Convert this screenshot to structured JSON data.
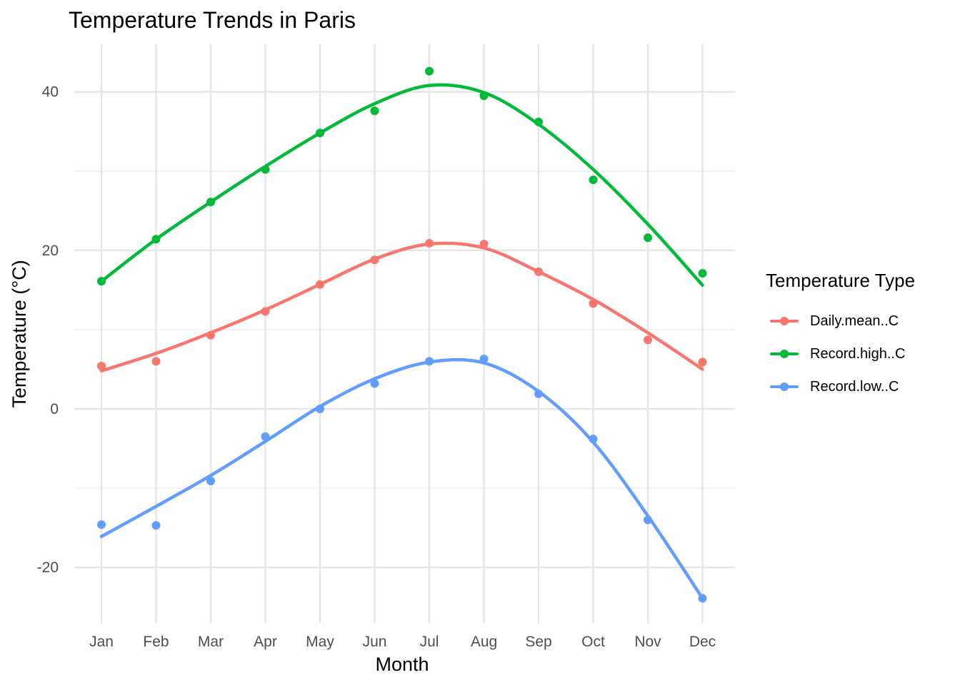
{
  "chart_data": {
    "type": "line",
    "title": "Temperature Trends in Paris",
    "xlabel": "Month",
    "ylabel": "Temperature (°C)",
    "categories": [
      "Jan",
      "Feb",
      "Mar",
      "Apr",
      "May",
      "Jun",
      "Jul",
      "Aug",
      "Sep",
      "Oct",
      "Nov",
      "Dec"
    ],
    "ylim": [
      -27,
      46
    ],
    "yticks": [
      -20,
      0,
      20,
      40
    ],
    "grid": true,
    "legend": {
      "title": "Temperature Type",
      "position": "right"
    },
    "series": [
      {
        "name": "Daily.mean..C",
        "color": "#F8766D",
        "values": [
          5.4,
          6.0,
          9.3,
          12.3,
          15.7,
          18.8,
          20.9,
          20.8,
          17.3,
          13.3,
          8.7,
          5.9
        ],
        "smooth": [
          4.8,
          7.0,
          9.6,
          12.5,
          15.7,
          18.9,
          20.8,
          20.3,
          17.3,
          13.8,
          9.6,
          5.0
        ]
      },
      {
        "name": "Record.high..C",
        "color": "#00BA38",
        "values": [
          16.1,
          21.4,
          26.1,
          30.2,
          34.8,
          37.6,
          42.6,
          39.5,
          36.2,
          28.9,
          21.6,
          17.1
        ],
        "smooth": [
          16.1,
          21.4,
          26.1,
          30.6,
          34.8,
          38.5,
          40.8,
          39.9,
          35.9,
          30.2,
          23.3,
          15.6
        ]
      },
      {
        "name": "Record.low..C",
        "color": "#619CFF",
        "values": [
          -14.6,
          -14.7,
          -9.1,
          -3.5,
          0.0,
          3.2,
          6.0,
          6.3,
          1.9,
          -3.8,
          -14.0,
          -23.9
        ],
        "smooth": [
          -16.1,
          -12.3,
          -8.4,
          -4.1,
          0.3,
          3.8,
          5.9,
          5.8,
          2.2,
          -4.2,
          -13.5,
          -23.9
        ]
      }
    ]
  }
}
